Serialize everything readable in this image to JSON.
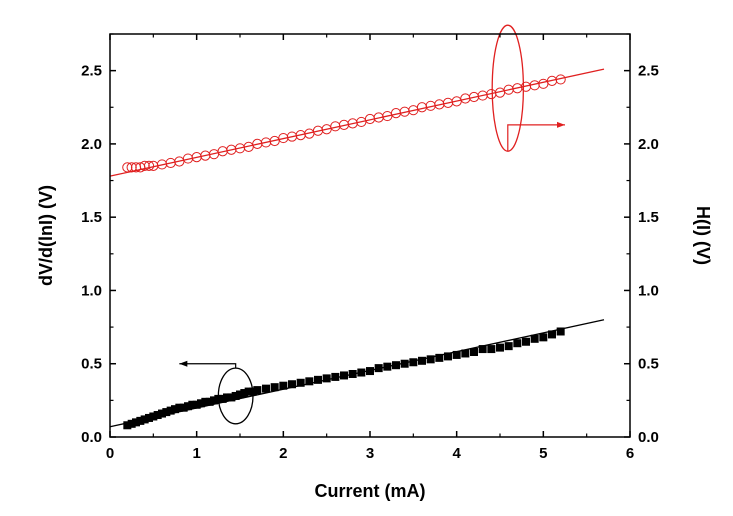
{
  "chart_data": {
    "type": "scatter",
    "xlabel": "Current (mA)",
    "ylabel": "dV/d(lnI) (V)",
    "y2label": "H(I) (V)",
    "xlim": [
      0,
      6
    ],
    "ylim": [
      0,
      2.75
    ],
    "y2lim": [
      0,
      2.75
    ],
    "xticks": [
      "0",
      "1",
      "2",
      "3",
      "4",
      "5",
      "6"
    ],
    "yticks": [
      "0.0",
      "0.5",
      "1.0",
      "1.5",
      "2.0",
      "2.5"
    ],
    "y2ticks": [
      "0.0",
      "0.5",
      "1.0",
      "1.5",
      "2.0",
      "2.5"
    ],
    "grid": false,
    "series": [
      {
        "axis": "left",
        "marker": "filled-square",
        "color": "#000000",
        "x": [
          0.2,
          0.25,
          0.3,
          0.35,
          0.4,
          0.45,
          0.5,
          0.55,
          0.6,
          0.65,
          0.7,
          0.75,
          0.8,
          0.85,
          0.9,
          0.95,
          1.0,
          1.05,
          1.1,
          1.15,
          1.2,
          1.25,
          1.3,
          1.35,
          1.4,
          1.45,
          1.5,
          1.55,
          1.6,
          1.65,
          1.7,
          1.8,
          1.9,
          2.0,
          2.1,
          2.2,
          2.3,
          2.4,
          2.5,
          2.6,
          2.7,
          2.8,
          2.9,
          3.0,
          3.1,
          3.2,
          3.3,
          3.4,
          3.5,
          3.6,
          3.7,
          3.8,
          3.9,
          4.0,
          4.1,
          4.2,
          4.3,
          4.4,
          4.5,
          4.6,
          4.7,
          4.8,
          4.9,
          5.0,
          5.1,
          5.2
        ],
        "y": [
          0.08,
          0.09,
          0.1,
          0.11,
          0.12,
          0.13,
          0.14,
          0.15,
          0.16,
          0.17,
          0.18,
          0.19,
          0.2,
          0.2,
          0.21,
          0.22,
          0.22,
          0.23,
          0.24,
          0.24,
          0.25,
          0.26,
          0.26,
          0.27,
          0.27,
          0.28,
          0.29,
          0.3,
          0.31,
          0.31,
          0.32,
          0.33,
          0.34,
          0.35,
          0.36,
          0.37,
          0.38,
          0.39,
          0.4,
          0.41,
          0.42,
          0.43,
          0.44,
          0.45,
          0.47,
          0.48,
          0.49,
          0.5,
          0.51,
          0.52,
          0.53,
          0.54,
          0.55,
          0.56,
          0.57,
          0.58,
          0.6,
          0.6,
          0.61,
          0.62,
          0.64,
          0.65,
          0.67,
          0.68,
          0.7,
          0.72
        ]
      },
      {
        "axis": "right",
        "marker": "open-circle",
        "color": "#e02020",
        "x": [
          0.2,
          0.25,
          0.3,
          0.35,
          0.4,
          0.45,
          0.5,
          0.6,
          0.7,
          0.8,
          0.9,
          1.0,
          1.1,
          1.2,
          1.3,
          1.4,
          1.5,
          1.6,
          1.7,
          1.8,
          1.9,
          2.0,
          2.1,
          2.2,
          2.3,
          2.4,
          2.5,
          2.6,
          2.7,
          2.8,
          2.9,
          3.0,
          3.1,
          3.2,
          3.3,
          3.4,
          3.5,
          3.6,
          3.7,
          3.8,
          3.9,
          4.0,
          4.1,
          4.2,
          4.3,
          4.4,
          4.5,
          4.6,
          4.7,
          4.8,
          4.9,
          5.0,
          5.1,
          5.2
        ],
        "y": [
          1.84,
          1.84,
          1.84,
          1.84,
          1.85,
          1.85,
          1.85,
          1.86,
          1.87,
          1.88,
          1.9,
          1.91,
          1.92,
          1.93,
          1.95,
          1.96,
          1.97,
          1.98,
          2.0,
          2.01,
          2.02,
          2.04,
          2.05,
          2.06,
          2.07,
          2.09,
          2.1,
          2.12,
          2.13,
          2.14,
          2.15,
          2.17,
          2.18,
          2.19,
          2.21,
          2.22,
          2.23,
          2.25,
          2.26,
          2.27,
          2.28,
          2.29,
          2.31,
          2.32,
          2.33,
          2.34,
          2.35,
          2.37,
          2.38,
          2.39,
          2.4,
          2.41,
          2.43,
          2.44
        ]
      }
    ],
    "fit_lines": [
      {
        "axis": "left",
        "color": "#000000",
        "x": [
          0.0,
          5.7
        ],
        "y": [
          0.07,
          0.8
        ]
      },
      {
        "axis": "right",
        "color": "#e02020",
        "x": [
          0.0,
          5.7
        ],
        "y": [
          1.78,
          2.51
        ]
      }
    ],
    "annotations": [
      {
        "type": "ellipse-arrow",
        "target": "left-axis",
        "color": "#000000",
        "cx": 1.45,
        "cy": 0.28,
        "rx": 0.2,
        "ry": 0.19,
        "arrow_to_x": 0.8,
        "arrow_y": 0.5
      },
      {
        "type": "ellipse-arrow",
        "target": "right-axis",
        "color": "#e02020",
        "cx": 4.59,
        "cy": 2.38,
        "rx": 0.18,
        "ry": 0.43,
        "arrow_to_x": 5.25,
        "arrow_y": 2.13
      }
    ]
  }
}
